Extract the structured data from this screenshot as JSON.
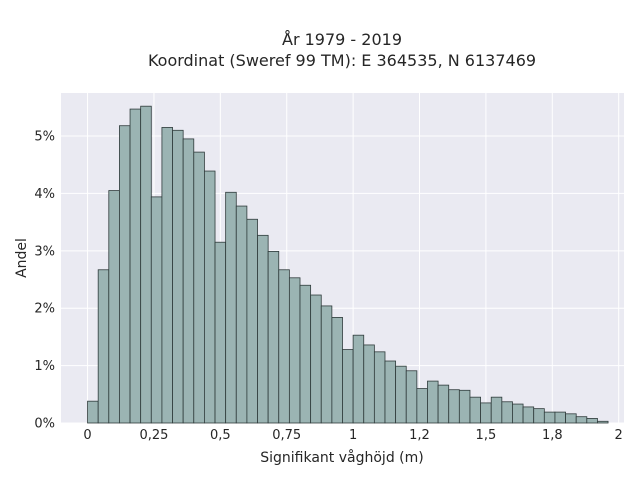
{
  "chart_data": {
    "type": "histogram",
    "title": [
      "År 1979 - 2019",
      "Koordinat (Sweref 99 TM): E 364535, N 6137469"
    ],
    "xlabel": "Signifikant våghöjd (m)",
    "ylabel": "Andel",
    "xlim": [
      -0.1,
      2.02
    ],
    "ylim": [
      0,
      0.0575
    ],
    "grid": true,
    "bin_width": 0.04,
    "bins_start": [
      0.0,
      0.04,
      0.08,
      0.12,
      0.16,
      0.2,
      0.24,
      0.28,
      0.32,
      0.36,
      0.4,
      0.44,
      0.48,
      0.52,
      0.56,
      0.6,
      0.64,
      0.68,
      0.72,
      0.76,
      0.8,
      0.84,
      0.88,
      0.92,
      0.96,
      1.0,
      1.04,
      1.08,
      1.12,
      1.16,
      1.2,
      1.24,
      1.28,
      1.32,
      1.36,
      1.4,
      1.44,
      1.48,
      1.52,
      1.56,
      1.6,
      1.64,
      1.68,
      1.72,
      1.76,
      1.8,
      1.84,
      1.88,
      1.92
    ],
    "values": [
      0.0038,
      0.0267,
      0.0405,
      0.0518,
      0.0547,
      0.0552,
      0.0394,
      0.0515,
      0.051,
      0.0495,
      0.0472,
      0.0439,
      0.0315,
      0.0402,
      0.0378,
      0.0355,
      0.0327,
      0.0299,
      0.0267,
      0.0253,
      0.024,
      0.0223,
      0.0204,
      0.0184,
      0.0128,
      0.0153,
      0.0136,
      0.0124,
      0.0108,
      0.0099,
      0.0091,
      0.006,
      0.0073,
      0.0066,
      0.0058,
      0.0057,
      0.0045,
      0.0035,
      0.0045,
      0.0037,
      0.0033,
      0.0028,
      0.0025,
      0.0019,
      0.0019,
      0.0016,
      0.0011,
      0.0008,
      0.0003
    ],
    "xticks": [
      0,
      0.25,
      0.5,
      0.75,
      1,
      1.25,
      1.5,
      1.75,
      2
    ],
    "xtick_labels": [
      "0",
      "0,25",
      "0,5",
      "0,75",
      "1",
      "1,2",
      "1,5",
      "1,8",
      "2"
    ],
    "yticks": [
      0,
      0.01,
      0.02,
      0.03,
      0.04,
      0.05
    ],
    "ytick_labels": [
      "0%",
      "1%",
      "2%",
      "3%",
      "4%",
      "5%"
    ],
    "colors": {
      "background": "#eaeaf2",
      "grid": "#ffffff",
      "bar_fill": "#9bb4b3",
      "bar_edge": "#2f3b3b"
    }
  }
}
